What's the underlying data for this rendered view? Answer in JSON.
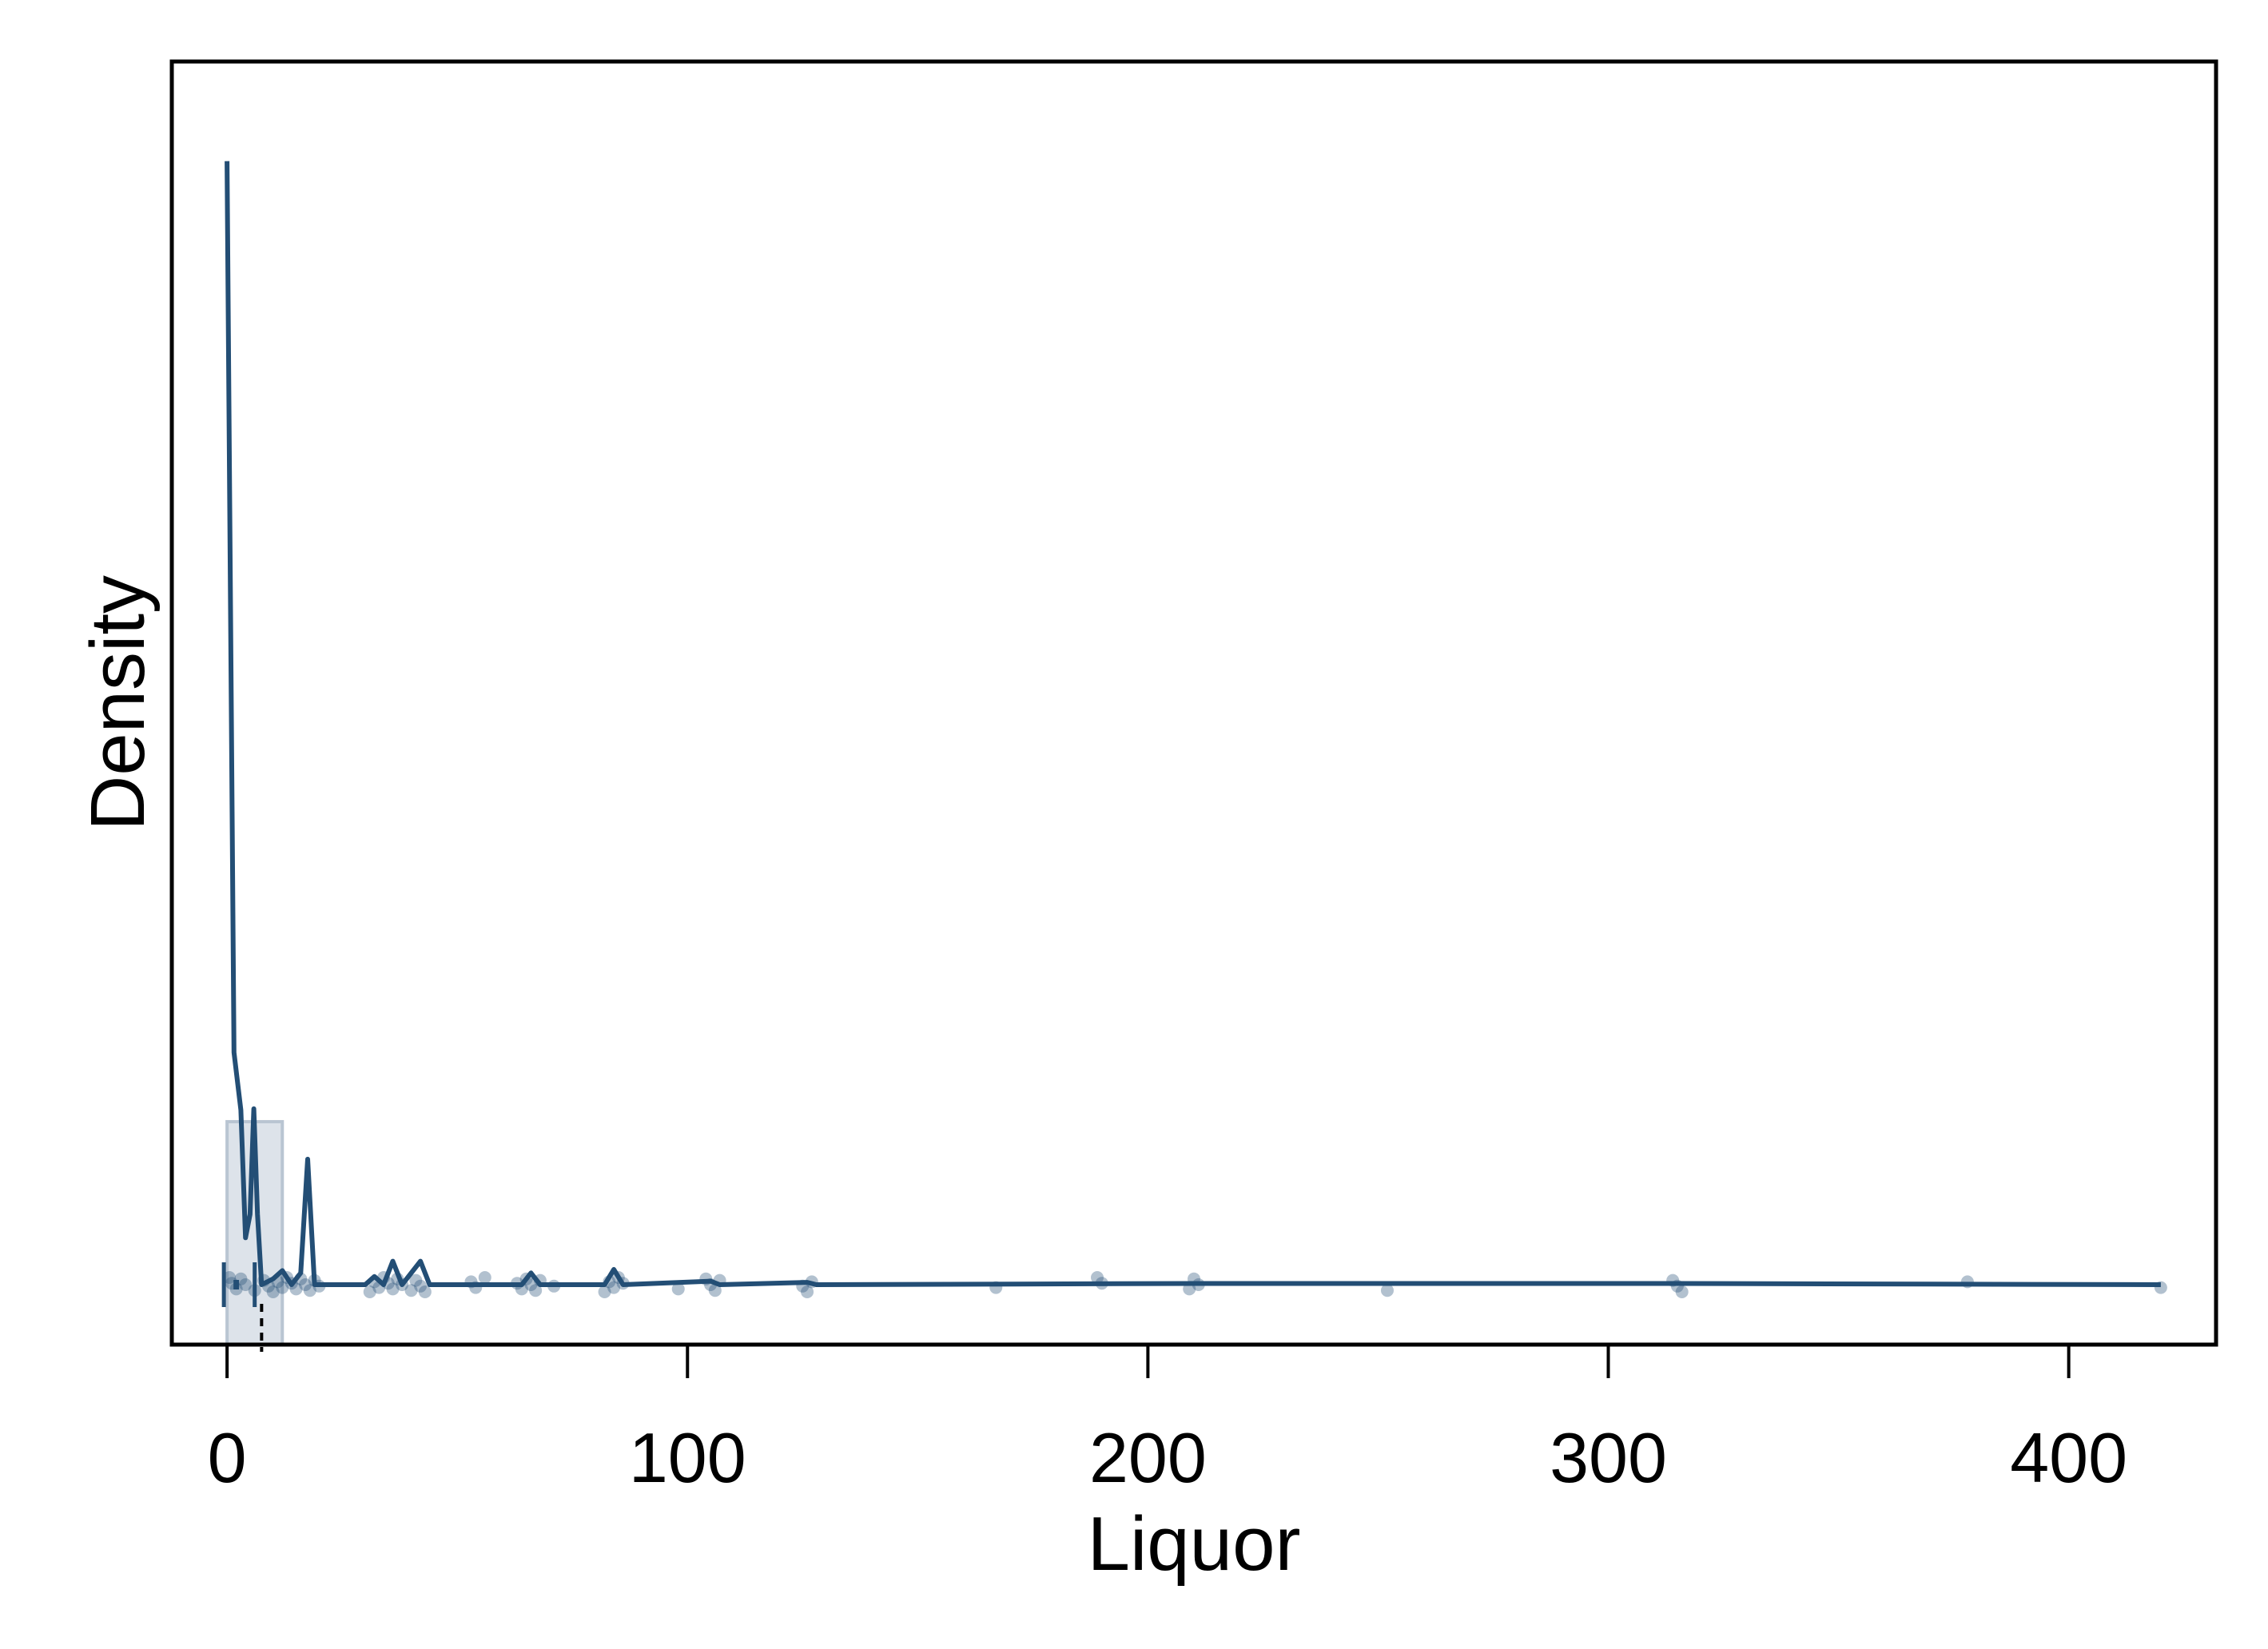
{
  "chart_data": {
    "type": "line",
    "title": "",
    "xlabel": "Liquor",
    "ylabel": "Density",
    "xlim": [
      -12,
      432
    ],
    "ylim": [
      0,
      1
    ],
    "grid": false,
    "legend": "none",
    "x_ticks": [
      0,
      100,
      200,
      300,
      400
    ],
    "x_tick_labels": [
      "0",
      "100",
      "200",
      "300",
      "400"
    ],
    "colors": {
      "line": "#234e75",
      "histogram_fill": "#dde3ea",
      "histogram_stroke": "#b9c5d2",
      "points": "#234e75",
      "frame": "#000000"
    },
    "histogram": [
      {
        "x0": 0,
        "x1": 12,
        "density": 0.139
      }
    ],
    "density_curve": [
      [
        0,
        0.958
      ],
      [
        1.5,
        0.198
      ],
      [
        3,
        0.149
      ],
      [
        4,
        0.04
      ],
      [
        5,
        0.06
      ],
      [
        5.8,
        0.15
      ],
      [
        6.6,
        0.06
      ],
      [
        7.5,
        0.0
      ],
      [
        10,
        0.005
      ],
      [
        12,
        0.012
      ],
      [
        14,
        0.0
      ],
      [
        16,
        0.01
      ],
      [
        17.5,
        0.107
      ],
      [
        19,
        0.0
      ],
      [
        30,
        0.0
      ],
      [
        32,
        0.007
      ],
      [
        34,
        0.0
      ],
      [
        36,
        0.02
      ],
      [
        38,
        0.0
      ],
      [
        42,
        0.02
      ],
      [
        44,
        0.0
      ],
      [
        64,
        0.0
      ],
      [
        66,
        0.01
      ],
      [
        68,
        0.0
      ],
      [
        82,
        0.0
      ],
      [
        84,
        0.013
      ],
      [
        86,
        0.0
      ],
      [
        105,
        0.003
      ],
      [
        107,
        0.0
      ],
      [
        126,
        0.002
      ],
      [
        128,
        0.0
      ],
      [
        210,
        0.001
      ],
      [
        315,
        0.001
      ],
      [
        420,
        0.0
      ]
    ],
    "rug_points": [
      0.5,
      1,
      2,
      3,
      4,
      6,
      8,
      9,
      10,
      11,
      12,
      13,
      14,
      15,
      16,
      17,
      18,
      19,
      20,
      31,
      32,
      33,
      34,
      35,
      36,
      37,
      38,
      40,
      41,
      42,
      43,
      53,
      54,
      56,
      63,
      64,
      65,
      66,
      67,
      68,
      71,
      82,
      83,
      84,
      85,
      86,
      98,
      104,
      105,
      106,
      107,
      125,
      126,
      127,
      167,
      189,
      190,
      209,
      210,
      211,
      252,
      314,
      315,
      316,
      378,
      420
    ],
    "boxplot": {
      "q1": 0,
      "median": 2,
      "q3": 6,
      "whisker_low": 0,
      "whisker_high": 7.5
    }
  }
}
